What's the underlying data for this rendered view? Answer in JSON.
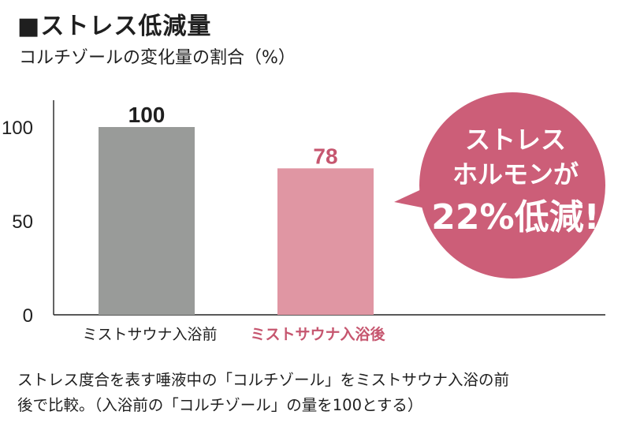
{
  "header": {
    "title": "■ストレス低減量",
    "subtitle": "コルチゾールの変化量の割合（%）"
  },
  "chart_data": {
    "type": "bar",
    "title": "■ストレス低減量",
    "subtitle": "コルチゾールの変化量の割合（%）",
    "xlabel": "",
    "ylabel": "",
    "ylim": [
      0,
      115
    ],
    "yticks": [
      0,
      50,
      100
    ],
    "grid": false,
    "categories": [
      "ミストサウナ入浴前",
      "ミストサウナ入浴後"
    ],
    "values": [
      100,
      78
    ],
    "data_labels": [
      "100",
      "78"
    ],
    "colors": [
      "#999b99",
      "#e096a3"
    ],
    "label_colors": [
      "#1f1f1f",
      "#c6566f"
    ],
    "annotation": {
      "lines": [
        "ストレス",
        "ホルモンが",
        "22%低減!"
      ],
      "color": "#cc5e78"
    }
  },
  "note": {
    "line1": "ストレス度合を表す唾液中の「コルチゾール」をミストサウナ入浴の前",
    "line2": "後で比較。（入浴前の「コルチゾール」の量を100とする）"
  }
}
